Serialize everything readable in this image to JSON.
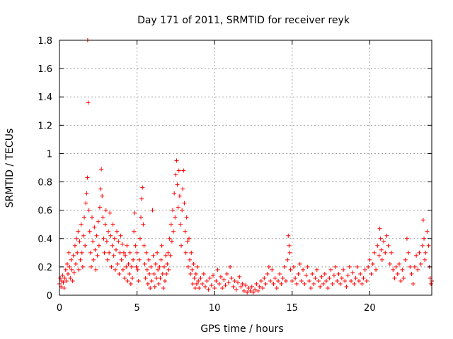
{
  "chart_data": {
    "type": "scatter",
    "title": "Day 171 of 2011, SRMTID for receiver reyk",
    "xlabel": "GPS time / hours",
    "ylabel": "SRMTID / TECUs",
    "xlim": [
      0,
      24
    ],
    "ylim": [
      0,
      1.8
    ],
    "xticks": [
      0,
      5,
      10,
      15,
      20
    ],
    "yticks": [
      0,
      0.2,
      0.4,
      0.6,
      0.8,
      1,
      1.2,
      1.4,
      1.6,
      1.8
    ],
    "xtick_labels": [
      "0",
      "5",
      "10",
      "15",
      "20"
    ],
    "ytick_labels": [
      "0",
      "0.2",
      "0.4",
      "0.6",
      "0.8",
      "1",
      "1.2",
      "1.4",
      "1.6",
      "1.8"
    ],
    "grid": true,
    "marker": "+",
    "color": "#ff0000",
    "points": [
      [
        0.0,
        0.08
      ],
      [
        0.05,
        0.12
      ],
      [
        0.1,
        0.06
      ],
      [
        0.15,
        0.1
      ],
      [
        0.2,
        0.14
      ],
      [
        0.25,
        0.09
      ],
      [
        0.3,
        0.05
      ],
      [
        0.35,
        0.12
      ],
      [
        0.4,
        0.18
      ],
      [
        0.45,
        0.1
      ],
      [
        0.5,
        0.22
      ],
      [
        0.55,
        0.15
      ],
      [
        0.6,
        0.3
      ],
      [
        0.65,
        0.2
      ],
      [
        0.7,
        0.12
      ],
      [
        0.75,
        0.25
      ],
      [
        0.8,
        0.18
      ],
      [
        0.85,
        0.1
      ],
      [
        0.9,
        0.28
      ],
      [
        0.95,
        0.16
      ],
      [
        1.0,
        0.35
      ],
      [
        1.05,
        0.22
      ],
      [
        1.1,
        0.4
      ],
      [
        1.15,
        0.3
      ],
      [
        1.2,
        0.45
      ],
      [
        1.25,
        0.18
      ],
      [
        1.3,
        0.38
      ],
      [
        1.35,
        0.25
      ],
      [
        1.4,
        0.5
      ],
      [
        1.45,
        0.3
      ],
      [
        1.5,
        0.2
      ],
      [
        1.55,
        0.42
      ],
      [
        1.6,
        0.55
      ],
      [
        1.65,
        0.35
      ],
      [
        1.7,
        0.65
      ],
      [
        1.75,
        0.72
      ],
      [
        1.8,
        0.83
      ],
      [
        1.82,
        1.8
      ],
      [
        1.85,
        1.36
      ],
      [
        1.9,
        0.6
      ],
      [
        1.95,
        0.45
      ],
      [
        2.0,
        0.3
      ],
      [
        2.05,
        0.2
      ],
      [
        2.1,
        0.55
      ],
      [
        2.15,
        0.38
      ],
      [
        2.2,
        0.25
      ],
      [
        2.25,
        0.48
      ],
      [
        2.3,
        0.32
      ],
      [
        2.35,
        0.18
      ],
      [
        2.4,
        0.42
      ],
      [
        2.45,
        0.28
      ],
      [
        2.5,
        0.52
      ],
      [
        2.55,
        0.35
      ],
      [
        2.6,
        0.62
      ],
      [
        2.65,
        0.75
      ],
      [
        2.7,
        0.89
      ],
      [
        2.75,
        0.7
      ],
      [
        2.8,
        0.55
      ],
      [
        2.85,
        0.4
      ],
      [
        2.9,
        0.3
      ],
      [
        2.95,
        0.5
      ],
      [
        3.0,
        0.6
      ],
      [
        3.05,
        0.38
      ],
      [
        3.1,
        0.25
      ],
      [
        3.15,
        0.45
      ],
      [
        3.2,
        0.3
      ],
      [
        3.25,
        0.58
      ],
      [
        3.3,
        0.42
      ],
      [
        3.35,
        0.2
      ],
      [
        3.4,
        0.35
      ],
      [
        3.45,
        0.5
      ],
      [
        3.5,
        0.28
      ],
      [
        3.55,
        0.4
      ],
      [
        3.6,
        0.18
      ],
      [
        3.65,
        0.32
      ],
      [
        3.7,
        0.45
      ],
      [
        3.75,
        0.22
      ],
      [
        3.8,
        0.38
      ],
      [
        3.85,
        0.15
      ],
      [
        3.9,
        0.3
      ],
      [
        3.95,
        0.42
      ],
      [
        4.0,
        0.25
      ],
      [
        4.05,
        0.36
      ],
      [
        4.1,
        0.18
      ],
      [
        4.15,
        0.3
      ],
      [
        4.2,
        0.12
      ],
      [
        4.25,
        0.28
      ],
      [
        4.3,
        0.2
      ],
      [
        4.35,
        0.35
      ],
      [
        4.4,
        0.1
      ],
      [
        4.45,
        0.22
      ],
      [
        4.5,
        0.15
      ],
      [
        4.55,
        0.3
      ],
      [
        4.6,
        0.08
      ],
      [
        4.65,
        0.2
      ],
      [
        4.7,
        0.12
      ],
      [
        4.75,
        0.25
      ],
      [
        4.8,
        0.45
      ],
      [
        4.85,
        0.58
      ],
      [
        4.9,
        0.35
      ],
      [
        4.95,
        0.2
      ],
      [
        5.0,
        0.3
      ],
      [
        5.05,
        0.18
      ],
      [
        5.1,
        0.1
      ],
      [
        5.15,
        0.25
      ],
      [
        5.2,
        0.4
      ],
      [
        5.25,
        0.55
      ],
      [
        5.3,
        0.68
      ],
      [
        5.35,
        0.76
      ],
      [
        5.4,
        0.5
      ],
      [
        5.45,
        0.35
      ],
      [
        5.5,
        0.22
      ],
      [
        5.55,
        0.12
      ],
      [
        5.6,
        0.3
      ],
      [
        5.65,
        0.18
      ],
      [
        5.7,
        0.08
      ],
      [
        5.75,
        0.25
      ],
      [
        5.8,
        0.15
      ],
      [
        5.85,
        0.05
      ],
      [
        5.9,
        0.2
      ],
      [
        5.95,
        0.1
      ],
      [
        6.0,
        0.6
      ],
      [
        6.05,
        0.28
      ],
      [
        6.1,
        0.15
      ],
      [
        6.15,
        0.06
      ],
      [
        6.2,
        0.22
      ],
      [
        6.25,
        0.12
      ],
      [
        6.3,
        0.3
      ],
      [
        6.35,
        0.18
      ],
      [
        6.4,
        0.08
      ],
      [
        6.45,
        0.2
      ],
      [
        6.5,
        0.12
      ],
      [
        6.55,
        0.25
      ],
      [
        6.6,
        0.35
      ],
      [
        6.65,
        0.15
      ],
      [
        6.7,
        0.05
      ],
      [
        6.75,
        0.2
      ],
      [
        6.8,
        0.1
      ],
      [
        6.85,
        0.28
      ],
      [
        6.9,
        0.15
      ],
      [
        6.95,
        0.22
      ],
      [
        7.0,
        0.3
      ],
      [
        7.05,
        0.18
      ],
      [
        7.1,
        0.4
      ],
      [
        7.15,
        0.28
      ],
      [
        7.2,
        0.5
      ],
      [
        7.25,
        0.38
      ],
      [
        7.3,
        0.6
      ],
      [
        7.35,
        0.45
      ],
      [
        7.4,
        0.72
      ],
      [
        7.45,
        0.55
      ],
      [
        7.5,
        0.85
      ],
      [
        7.55,
        0.95
      ],
      [
        7.6,
        0.78
      ],
      [
        7.65,
        0.62
      ],
      [
        7.7,
        0.88
      ],
      [
        7.75,
        0.7
      ],
      [
        7.8,
        0.5
      ],
      [
        7.85,
        0.35
      ],
      [
        7.9,
        0.6
      ],
      [
        7.95,
        0.75
      ],
      [
        8.0,
        0.88
      ],
      [
        8.05,
        0.65
      ],
      [
        8.1,
        0.45
      ],
      [
        8.15,
        0.3
      ],
      [
        8.2,
        0.55
      ],
      [
        8.25,
        0.38
      ],
      [
        8.3,
        0.2
      ],
      [
        8.35,
        0.4
      ],
      [
        8.4,
        0.25
      ],
      [
        8.45,
        0.15
      ],
      [
        8.5,
        0.3
      ],
      [
        8.55,
        0.18
      ],
      [
        8.6,
        0.08
      ],
      [
        8.65,
        0.22
      ],
      [
        8.7,
        0.12
      ],
      [
        8.75,
        0.05
      ],
      [
        8.8,
        0.15
      ],
      [
        8.85,
        0.08
      ],
      [
        8.9,
        0.2
      ],
      [
        8.95,
        0.1
      ],
      [
        9.0,
        0.05
      ],
      [
        9.1,
        0.12
      ],
      [
        9.2,
        0.08
      ],
      [
        9.3,
        0.15
      ],
      [
        9.4,
        0.06
      ],
      [
        9.5,
        0.1
      ],
      [
        9.6,
        0.04
      ],
      [
        9.7,
        0.12
      ],
      [
        9.8,
        0.07
      ],
      [
        9.9,
        0.14
      ],
      [
        10.0,
        0.05
      ],
      [
        10.1,
        0.1
      ],
      [
        10.2,
        0.18
      ],
      [
        10.3,
        0.08
      ],
      [
        10.4,
        0.13
      ],
      [
        10.5,
        0.05
      ],
      [
        10.6,
        0.11
      ],
      [
        10.7,
        0.07
      ],
      [
        10.8,
        0.15
      ],
      [
        10.9,
        0.09
      ],
      [
        11.0,
        0.2
      ],
      [
        11.1,
        0.12
      ],
      [
        11.2,
        0.06
      ],
      [
        11.3,
        0.1
      ],
      [
        11.4,
        0.04
      ],
      [
        11.5,
        0.09
      ],
      [
        11.6,
        0.13
      ],
      [
        11.7,
        0.06
      ],
      [
        11.8,
        0.08
      ],
      [
        11.9,
        0.03
      ],
      [
        12.0,
        0.07
      ],
      [
        12.1,
        0.02
      ],
      [
        12.2,
        0.05
      ],
      [
        12.3,
        0.03
      ],
      [
        12.4,
        0.06
      ],
      [
        12.5,
        0.02
      ],
      [
        12.6,
        0.04
      ],
      [
        12.7,
        0.08
      ],
      [
        12.8,
        0.03
      ],
      [
        12.9,
        0.06
      ],
      [
        13.0,
        0.1
      ],
      [
        13.1,
        0.05
      ],
      [
        13.2,
        0.12
      ],
      [
        13.3,
        0.08
      ],
      [
        13.4,
        0.15
      ],
      [
        13.5,
        0.2
      ],
      [
        13.6,
        0.1
      ],
      [
        13.7,
        0.18
      ],
      [
        13.8,
        0.08
      ],
      [
        13.9,
        0.12
      ],
      [
        14.0,
        0.05
      ],
      [
        14.1,
        0.1
      ],
      [
        14.2,
        0.15
      ],
      [
        14.3,
        0.08
      ],
      [
        14.4,
        0.12
      ],
      [
        14.5,
        0.2
      ],
      [
        14.6,
        0.1
      ],
      [
        14.7,
        0.25
      ],
      [
        14.75,
        0.42
      ],
      [
        14.8,
        0.35
      ],
      [
        14.85,
        0.3
      ],
      [
        14.9,
        0.18
      ],
      [
        15.0,
        0.1
      ],
      [
        15.1,
        0.2
      ],
      [
        15.2,
        0.12
      ],
      [
        15.3,
        0.08
      ],
      [
        15.4,
        0.15
      ],
      [
        15.5,
        0.22
      ],
      [
        15.6,
        0.1
      ],
      [
        15.7,
        0.18
      ],
      [
        15.8,
        0.08
      ],
      [
        15.9,
        0.14
      ],
      [
        16.0,
        0.2
      ],
      [
        16.1,
        0.1
      ],
      [
        16.2,
        0.05
      ],
      [
        16.3,
        0.15
      ],
      [
        16.4,
        0.08
      ],
      [
        16.5,
        0.12
      ],
      [
        16.6,
        0.18
      ],
      [
        16.7,
        0.1
      ],
      [
        16.8,
        0.06
      ],
      [
        16.9,
        0.13
      ],
      [
        17.0,
        0.08
      ],
      [
        17.1,
        0.15
      ],
      [
        17.2,
        0.1
      ],
      [
        17.3,
        0.05
      ],
      [
        17.4,
        0.12
      ],
      [
        17.5,
        0.18
      ],
      [
        17.6,
        0.08
      ],
      [
        17.7,
        0.14
      ],
      [
        17.8,
        0.2
      ],
      [
        17.9,
        0.1
      ],
      [
        18.0,
        0.15
      ],
      [
        18.1,
        0.08
      ],
      [
        18.2,
        0.12
      ],
      [
        18.3,
        0.18
      ],
      [
        18.4,
        0.1
      ],
      [
        18.5,
        0.06
      ],
      [
        18.6,
        0.14
      ],
      [
        18.7,
        0.2
      ],
      [
        18.8,
        0.1
      ],
      [
        18.9,
        0.16
      ],
      [
        19.0,
        0.08
      ],
      [
        19.1,
        0.12
      ],
      [
        19.2,
        0.2
      ],
      [
        19.3,
        0.1
      ],
      [
        19.4,
        0.15
      ],
      [
        19.5,
        0.08
      ],
      [
        19.6,
        0.12
      ],
      [
        19.7,
        0.18
      ],
      [
        19.8,
        0.1
      ],
      [
        19.9,
        0.2
      ],
      [
        20.0,
        0.25
      ],
      [
        20.1,
        0.15
      ],
      [
        20.2,
        0.22
      ],
      [
        20.3,
        0.3
      ],
      [
        20.4,
        0.18
      ],
      [
        20.5,
        0.35
      ],
      [
        20.6,
        0.28
      ],
      [
        20.65,
        0.47
      ],
      [
        20.7,
        0.4
      ],
      [
        20.75,
        0.32
      ],
      [
        20.8,
        0.25
      ],
      [
        20.9,
        0.38
      ],
      [
        21.0,
        0.3
      ],
      [
        21.1,
        0.42
      ],
      [
        21.2,
        0.35
      ],
      [
        21.3,
        0.22
      ],
      [
        21.4,
        0.3
      ],
      [
        21.5,
        0.18
      ],
      [
        21.6,
        0.12
      ],
      [
        21.7,
        0.2
      ],
      [
        21.8,
        0.15
      ],
      [
        21.9,
        0.22
      ],
      [
        22.0,
        0.1
      ],
      [
        22.1,
        0.18
      ],
      [
        22.2,
        0.12
      ],
      [
        22.3,
        0.25
      ],
      [
        22.4,
        0.4
      ],
      [
        22.5,
        0.3
      ],
      [
        22.6,
        0.2
      ],
      [
        22.7,
        0.15
      ],
      [
        22.8,
        0.08
      ],
      [
        22.9,
        0.2
      ],
      [
        23.0,
        0.28
      ],
      [
        23.1,
        0.18
      ],
      [
        23.2,
        0.3
      ],
      [
        23.3,
        0.22
      ],
      [
        23.4,
        0.35
      ],
      [
        23.45,
        0.53
      ],
      [
        23.5,
        0.4
      ],
      [
        23.55,
        0.25
      ],
      [
        23.6,
        0.3
      ],
      [
        23.7,
        0.45
      ],
      [
        23.8,
        0.35
      ],
      [
        23.85,
        0.2
      ],
      [
        23.9,
        0.12
      ],
      [
        23.95,
        0.08
      ],
      [
        24.0,
        0.1
      ]
    ]
  }
}
